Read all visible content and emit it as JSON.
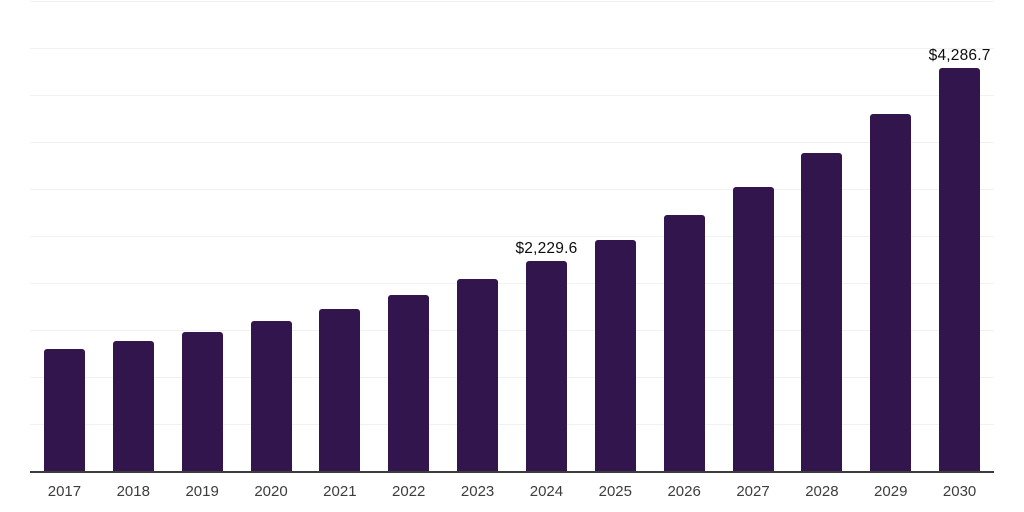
{
  "chart_data": {
    "type": "bar",
    "title": "",
    "xlabel": "",
    "ylabel": "",
    "categories": [
      "2017",
      "2018",
      "2019",
      "2020",
      "2021",
      "2022",
      "2023",
      "2024",
      "2025",
      "2026",
      "2027",
      "2028",
      "2029",
      "2030"
    ],
    "values": [
      1300,
      1385,
      1480,
      1595,
      1720,
      1870,
      2040,
      2229.6,
      2455,
      2720,
      3025,
      3380,
      3800,
      4286.7
    ],
    "value_labels": {
      "2024": "$2,229.6",
      "2030": "$4,286.7"
    },
    "ylim": [
      0,
      5000
    ],
    "gridline_interval": 500,
    "grid": "horizontal",
    "legend_position": "none",
    "y_axis_tick_labels_visible": false,
    "colors": {
      "bar": "#33154e",
      "axis_line": "#3d3d3d",
      "gridline": "#f1f1f1",
      "tick_label": "#3d3d3d",
      "value_label": "#0d0d0d",
      "background": "#ffffff"
    }
  }
}
